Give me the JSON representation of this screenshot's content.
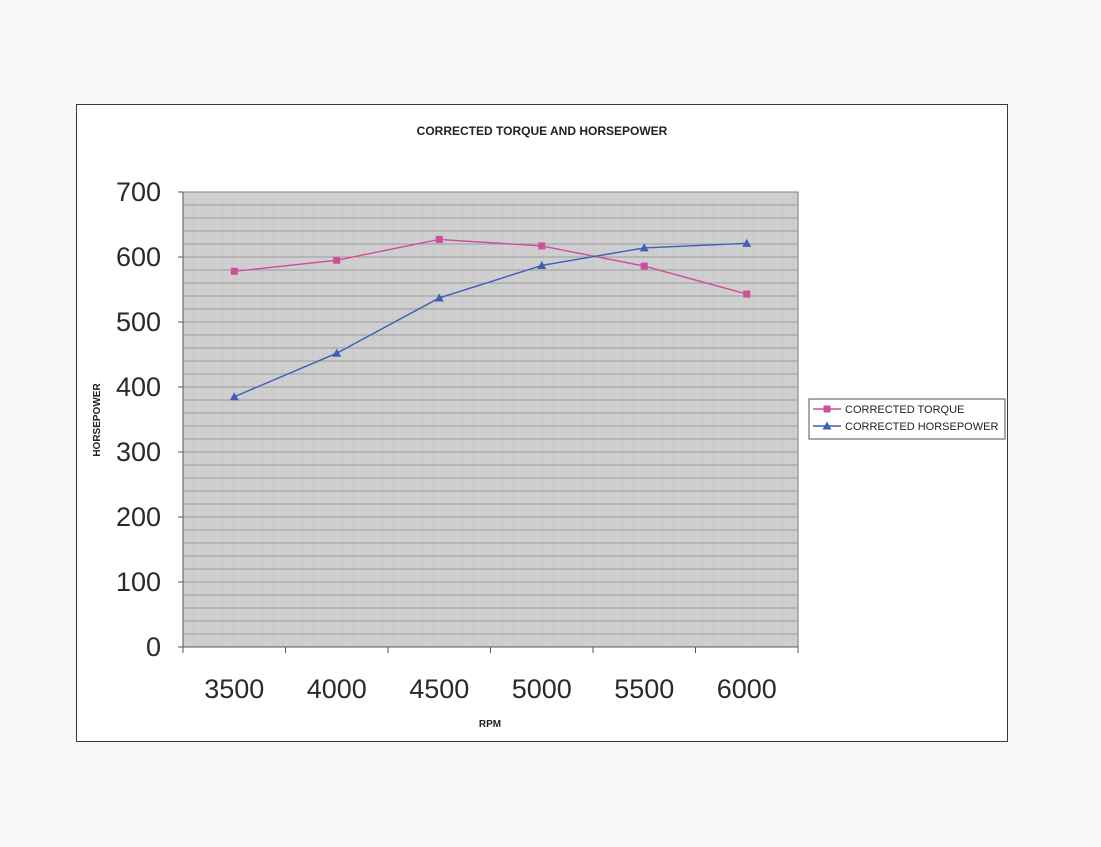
{
  "chart_data": {
    "type": "line",
    "title": "CORRECTED TORQUE AND HORSEPOWER",
    "xlabel": "RPM",
    "ylabel": "HORSEPOWER",
    "categories": [
      "3500",
      "4000",
      "4500",
      "5000",
      "5500",
      "6000"
    ],
    "ylim": [
      0,
      700
    ],
    "yticks": [
      0,
      100,
      200,
      300,
      400,
      500,
      600,
      700
    ],
    "grid": true,
    "legend_position": "right",
    "plot_background": "#cfcfcf",
    "series": [
      {
        "name": "CORRECTED TORQUE",
        "values": [
          578,
          595,
          627,
          617,
          586,
          543
        ],
        "color": "#cc4f9a",
        "marker": "square"
      },
      {
        "name": "CORRECTED  HORSEPOWER",
        "values": [
          385,
          452,
          537,
          587,
          614,
          621
        ],
        "color": "#3e5fb5",
        "marker": "triangle"
      }
    ]
  }
}
